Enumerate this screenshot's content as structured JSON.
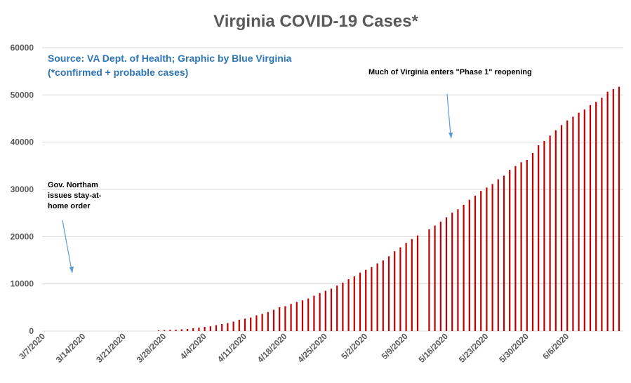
{
  "colors": {
    "bar": "#c00000",
    "grid": "#d9d9d9",
    "axis_text": "#595959",
    "title": "#595959",
    "source": "#2e75b6",
    "arrow": "#5b9bd5"
  },
  "chart_data": {
    "type": "bar",
    "title": "Virginia COVID-19 Cases*",
    "source_line1": "Source: VA Dept. of Health; Graphic by Blue Virginia",
    "source_line2": "(*confirmed + probable cases)",
    "xlabel": "",
    "ylabel": "",
    "ylim": [
      0,
      60000
    ],
    "yticks": [
      0,
      10000,
      20000,
      30000,
      40000,
      50000,
      60000
    ],
    "grid": true,
    "legend": "none",
    "start_date": "3/7/2020",
    "x_tick_labels": [
      "3/7/2020",
      "3/14/2020",
      "3/21/2020",
      "3/28/2020",
      "4/4/2020",
      "4/11/2020",
      "4/18/2020",
      "4/25/2020",
      "5/2/2020",
      "5/9/2020",
      "5/16/2020",
      "5/23/2020",
      "5/30/2020",
      "6/6/2020"
    ],
    "series": [
      {
        "values": [
          0,
          0,
          0,
          0,
          0,
          0,
          0,
          0,
          0,
          0,
          0,
          0,
          0,
          0,
          0,
          0,
          0,
          0,
          0,
          0,
          152,
          219,
          254,
          290,
          391,
          460,
          604,
          739,
          890,
          1020,
          1250,
          1484,
          1706,
          2012,
          2407,
          2637,
          2878,
          3333,
          3645,
          4042,
          4509,
          5077,
          5274,
          5747,
          6171,
          6500,
          6889,
          7491,
          8053,
          8537,
          8990,
          9630,
          10266,
          10998,
          11594,
          12366,
          12970,
          13535,
          14339,
          14961,
          15846,
          16901,
          17731,
          18671,
          19492,
          20256,
          null,
          21570,
          22342,
          23196,
          24081,
          25070,
          25800,
          26746,
          27813,
          28672,
          29683,
          30388,
          31140,
          32145,
          32908,
          34137,
          34950,
          35749,
          36244,
          37727,
          39342,
          40249,
          41401,
          42533,
          43611,
          44607,
          45398,
          46239,
          46905,
          47856,
          48532,
          49397,
          50681,
          51251,
          51738
        ]
      }
    ],
    "annotations": [
      {
        "lines": [
          "Gov. Northam",
          "issues stay-at-",
          "home order"
        ]
      },
      {
        "lines": [
          "Much of Virginia enters \"Phase 1\" reopening"
        ]
      }
    ]
  }
}
